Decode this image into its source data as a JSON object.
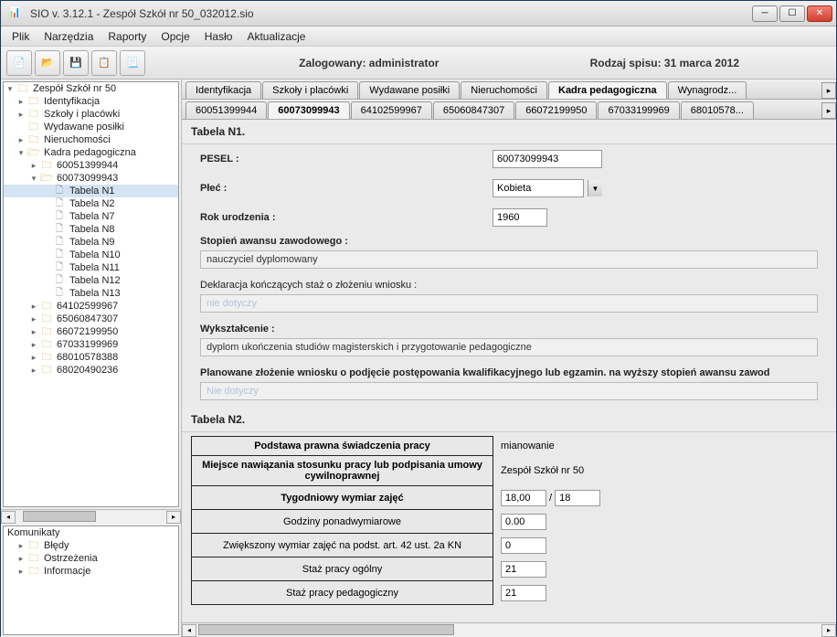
{
  "window": {
    "title": "SIO v. 3.12.1  -  Zespół Szkół nr 50_032012.sio"
  },
  "menu": [
    "Plik",
    "Narzędzia",
    "Raporty",
    "Opcje",
    "Hasło",
    "Aktualizacje"
  ],
  "toolbar": {
    "logged_in": "Zalogowany: administrator",
    "census": "Rodzaj spisu: 31 marca 2012"
  },
  "tree": {
    "root": "Zespół Szkół nr 50",
    "items": [
      {
        "label": "Identyfikacja",
        "ind": 1,
        "toggle": "▸",
        "icon": "folder"
      },
      {
        "label": "Szkoły i placówki",
        "ind": 1,
        "toggle": "▸",
        "icon": "folder"
      },
      {
        "label": "Wydawane posiłki",
        "ind": 1,
        "toggle": "",
        "icon": "folder"
      },
      {
        "label": "Nieruchomości",
        "ind": 1,
        "toggle": "▸",
        "icon": "folder"
      },
      {
        "label": "Kadra pedagogiczna",
        "ind": 1,
        "toggle": "▾",
        "icon": "folder-open"
      },
      {
        "label": "60051399944",
        "ind": 2,
        "toggle": "▸",
        "icon": "folder"
      },
      {
        "label": "60073099943",
        "ind": 2,
        "toggle": "▾",
        "icon": "folder-open"
      },
      {
        "label": "Tabela N1",
        "ind": 3,
        "toggle": "",
        "icon": "file",
        "selected": true
      },
      {
        "label": "Tabela N2",
        "ind": 3,
        "toggle": "",
        "icon": "file"
      },
      {
        "label": "Tabela N7",
        "ind": 3,
        "toggle": "",
        "icon": "file"
      },
      {
        "label": "Tabela N8",
        "ind": 3,
        "toggle": "",
        "icon": "file"
      },
      {
        "label": "Tabela N9",
        "ind": 3,
        "toggle": "",
        "icon": "file"
      },
      {
        "label": "Tabela N10",
        "ind": 3,
        "toggle": "",
        "icon": "file"
      },
      {
        "label": "Tabela N11",
        "ind": 3,
        "toggle": "",
        "icon": "file"
      },
      {
        "label": "Tabela N12",
        "ind": 3,
        "toggle": "",
        "icon": "file"
      },
      {
        "label": "Tabela N13",
        "ind": 3,
        "toggle": "",
        "icon": "file"
      },
      {
        "label": "64102599967",
        "ind": 2,
        "toggle": "▸",
        "icon": "folder"
      },
      {
        "label": "65060847307",
        "ind": 2,
        "toggle": "▸",
        "icon": "folder"
      },
      {
        "label": "66072199950",
        "ind": 2,
        "toggle": "▸",
        "icon": "folder"
      },
      {
        "label": "67033199969",
        "ind": 2,
        "toggle": "▸",
        "icon": "folder"
      },
      {
        "label": "68010578388",
        "ind": 2,
        "toggle": "▸",
        "icon": "folder"
      },
      {
        "label": "68020490236",
        "ind": 2,
        "toggle": "▸",
        "icon": "folder"
      }
    ]
  },
  "messages": {
    "header": "Komunikaty",
    "items": [
      "Błędy",
      "Ostrzeżenia",
      "Informacje"
    ]
  },
  "tabs1": [
    "Identyfikacja",
    "Szkoły i placówki",
    "Wydawane posiłki",
    "Nieruchomości",
    "Kadra pedagogiczna",
    "Wynagrodz..."
  ],
  "tabs1_active": 4,
  "tabs2": [
    "60051399944",
    "60073099943",
    "64102599967",
    "65060847307",
    "66072199950",
    "67033199969",
    "68010578..."
  ],
  "tabs2_active": 1,
  "form": {
    "section1": "Tabela N1.",
    "pesel_label": "PESEL :",
    "pesel_value": "60073099943",
    "gender_label": "Płeć :",
    "gender_value": "Kobieta",
    "birth_label": "Rok urodzenia :",
    "birth_value": "1960",
    "degree_label": "Stopień awansu zawodowego :",
    "degree_value": "nauczyciel dyplomowany",
    "declaration_label": "Deklaracja kończących staż o złożeniu wniosku :",
    "declaration_value": "nie dotyczy",
    "education_label": "Wykształcenie :",
    "education_value": "dyplom ukończenia studiów magisterskich i przygotowanie pedagogiczne",
    "planned_label": "Planowane złożenie wniosku o podjęcie postępowania kwalifikacyjnego lub egzamin. na wyższy stopień awansu zawod",
    "planned_value": "Nie dotyczy",
    "section2": "Tabela N2.",
    "n2_rows": [
      {
        "label": "Podstawa prawna świadczenia pracy",
        "value": "mianowanie",
        "bold": true,
        "type": "text"
      },
      {
        "label": "Miejsce nawiązania stosunku pracy lub podpisania umowy cywilnoprawnej",
        "value": "Zespół Szkół nr 50",
        "bold": true,
        "type": "text"
      },
      {
        "label": "Tygodniowy wymiar zajęć",
        "value": "18,00",
        "value2": "18",
        "bold": true,
        "type": "pair"
      },
      {
        "label": "Godziny ponadwymiarowe",
        "value": "0.00",
        "type": "single"
      },
      {
        "label": "Zwiększony wymiar zajęć na podst. art. 42 ust. 2a KN",
        "value": "0",
        "type": "single"
      },
      {
        "label": "Staż pracy ogólny",
        "value": "21",
        "type": "single"
      },
      {
        "label": "Staż pracy pedagogiczny",
        "value": "21",
        "type": "single"
      }
    ]
  }
}
